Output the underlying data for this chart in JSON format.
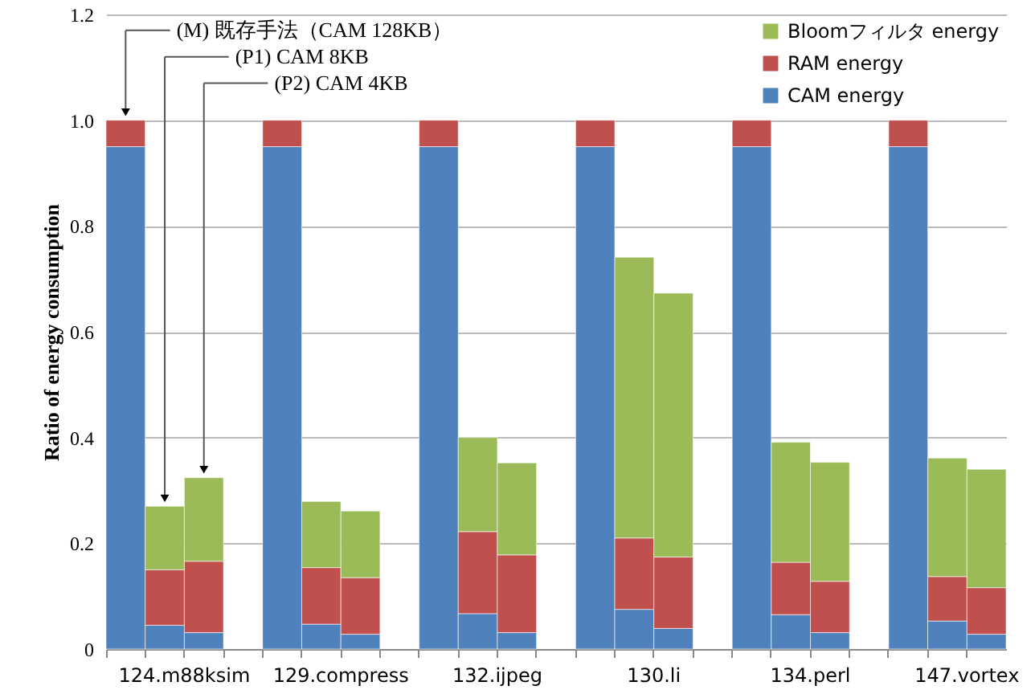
{
  "chart_data": {
    "type": "bar",
    "stacked": true,
    "ylabel": "Ratio of energy consumption",
    "categories": [
      null,
      "124.m88ksim",
      null,
      null,
      null,
      "129.compress",
      null,
      null,
      null,
      "132.ijpeg",
      null,
      null,
      null,
      "130.li",
      null,
      null,
      null,
      "134.perl",
      null,
      null,
      null,
      "147.vortex",
      null
    ],
    "series": [
      {
        "name": "CAM energy",
        "color": "#4f81bd",
        "values": [
          0.95,
          0.045,
          0.031,
          null,
          0.95,
          0.047,
          0.028,
          null,
          0.95,
          0.067,
          0.031,
          null,
          0.95,
          0.075,
          0.039,
          null,
          0.95,
          0.065,
          0.031,
          null,
          0.95,
          0.053,
          0.028
        ]
      },
      {
        "name": "RAM energy",
        "color": "#c0504d",
        "values": [
          0.05,
          0.105,
          0.135,
          null,
          0.05,
          0.107,
          0.107,
          null,
          0.05,
          0.155,
          0.147,
          null,
          0.05,
          0.135,
          0.135,
          null,
          0.05,
          0.099,
          0.097,
          null,
          0.05,
          0.084,
          0.088
        ]
      },
      {
        "name": "Bloomフィルタ energy",
        "color": "#9bbb59",
        "values": [
          null,
          0.12,
          0.158,
          null,
          null,
          0.125,
          0.126,
          null,
          null,
          0.178,
          0.174,
          null,
          null,
          0.531,
          0.499,
          null,
          null,
          0.227,
          0.225,
          null,
          null,
          0.224,
          0.224
        ]
      }
    ],
    "ylim": [
      0,
      1.2
    ],
    "yticks": [
      0,
      0.2,
      0.4,
      0.6,
      0.8,
      {
        "value": 1,
        "label": "1.0"
      },
      1.2
    ],
    "grid": "y",
    "legend": "top right",
    "annotations": [
      "(M) 既存手法（CAM 128KB）",
      "(P1) CAM 8KB",
      "(P2) CAM 4KB"
    ]
  }
}
